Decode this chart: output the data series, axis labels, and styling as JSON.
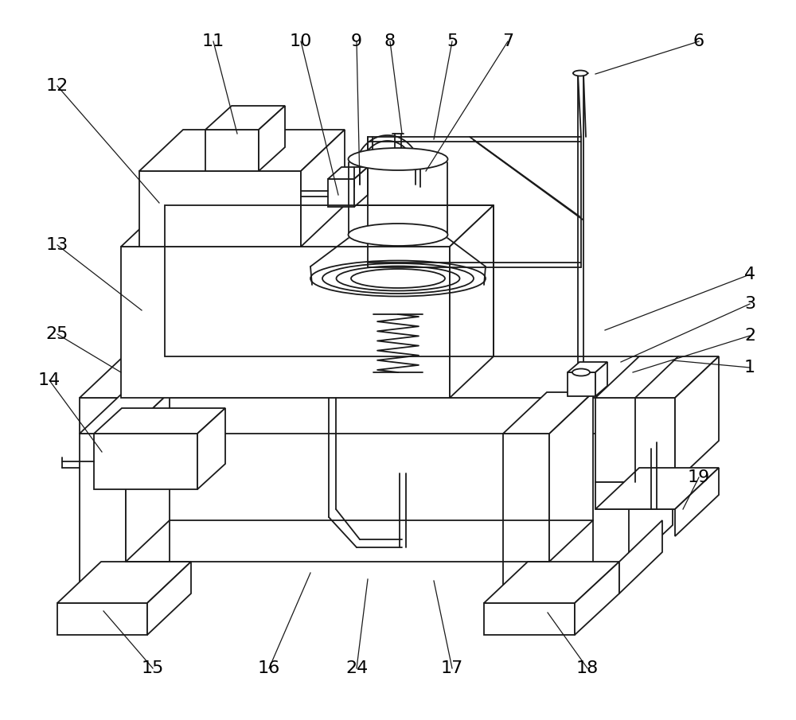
{
  "bg_color": "#ffffff",
  "line_color": "#1a1a1a",
  "lw": 1.3,
  "figsize": [
    10.0,
    9.05
  ],
  "dpi": 100,
  "annotations": [
    [
      "1",
      942,
      462,
      845,
      453
    ],
    [
      "2",
      942,
      422,
      795,
      468
    ],
    [
      "3",
      942,
      382,
      780,
      455
    ],
    [
      "4",
      942,
      345,
      760,
      415
    ],
    [
      "5",
      568,
      52,
      545,
      175
    ],
    [
      "6",
      878,
      52,
      748,
      93
    ],
    [
      "7",
      638,
      52,
      535,
      215
    ],
    [
      "8",
      490,
      52,
      505,
      168
    ],
    [
      "9",
      448,
      52,
      452,
      232
    ],
    [
      "10",
      378,
      52,
      425,
      245
    ],
    [
      "11",
      268,
      52,
      298,
      168
    ],
    [
      "12",
      72,
      108,
      200,
      255
    ],
    [
      "13",
      72,
      308,
      178,
      390
    ],
    [
      "14",
      62,
      478,
      128,
      568
    ],
    [
      "15",
      192,
      840,
      130,
      768
    ],
    [
      "16",
      338,
      840,
      390,
      720
    ],
    [
      "17",
      568,
      840,
      545,
      730
    ],
    [
      "18",
      738,
      840,
      688,
      770
    ],
    [
      "19",
      878,
      600,
      858,
      640
    ],
    [
      "24",
      448,
      840,
      462,
      728
    ],
    [
      "25",
      72,
      420,
      152,
      468
    ]
  ]
}
